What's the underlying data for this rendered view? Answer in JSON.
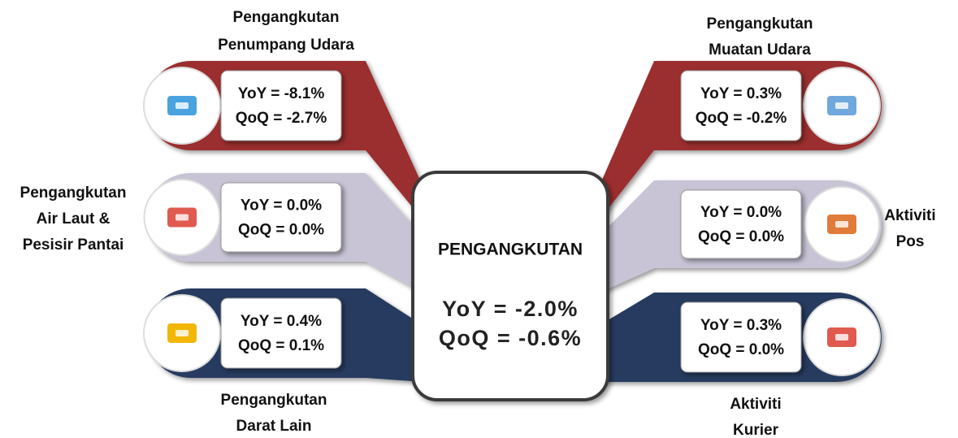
{
  "center": {
    "title": "PENGANGKUTAN",
    "yoy": "YoY = -2.0%",
    "qoq": "QoQ = -0.6%"
  },
  "segments": [
    {
      "label": [
        "Pengangkutan",
        "Penumpang Udara"
      ],
      "yoy": "YoY = -8.1%",
      "qoq": "QoQ = -2.7%"
    },
    {
      "label": [
        "Pengangkutan",
        "Air Laut &",
        "Pesisir Pantai"
      ],
      "yoy": "YoY = 0.0%",
      "qoq": "QoQ = 0.0%"
    },
    {
      "label": [
        "Pengangkutan",
        "Darat Lain"
      ],
      "yoy": "YoY = 0.4%",
      "qoq": "QoQ = 0.1%"
    },
    {
      "label": [
        "Pengangkutan",
        "Muatan Udara"
      ],
      "yoy": "YoY = 0.3%",
      "qoq": "QoQ = -0.2%"
    },
    {
      "label": [
        "Aktiviti",
        "Pos"
      ],
      "yoy": "YoY = 0.0%",
      "qoq": "QoQ = 0.0%"
    },
    {
      "label": [
        "Aktiviti",
        "Kurier"
      ],
      "yoy": "YoY = 0.3%",
      "qoq": "QoQ = 0.0%"
    }
  ]
}
